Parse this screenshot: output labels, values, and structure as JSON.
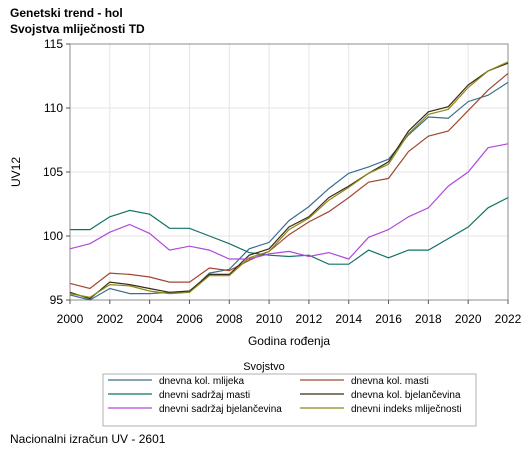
{
  "title": "Genetski trend - hol",
  "subtitle": "Svojstva mliječnosti TD",
  "footnote": "Nacionalni izračun UV - 2601",
  "chart_data": {
    "type": "line",
    "xlabel": "Godina rođenja",
    "ylabel": "UV12",
    "xlim": [
      2000,
      2022
    ],
    "ylim": [
      95,
      115
    ],
    "xticks": [
      2000,
      2002,
      2004,
      2006,
      2008,
      2010,
      2012,
      2014,
      2016,
      2018,
      2020,
      2022
    ],
    "yticks": [
      95,
      100,
      105,
      110,
      115
    ],
    "grid": true,
    "legend_title": "Svojstvo",
    "legend_position": "bottom",
    "x": [
      2000,
      2001,
      2002,
      2003,
      2004,
      2005,
      2006,
      2007,
      2008,
      2009,
      2010,
      2011,
      2012,
      2013,
      2014,
      2015,
      2016,
      2017,
      2018,
      2019,
      2020,
      2021,
      2022
    ],
    "series": [
      {
        "name": "dnevna kol. mlijeka",
        "color": "#3b6e8f",
        "values": [
          95.4,
          95.0,
          95.9,
          95.5,
          95.5,
          95.6,
          95.6,
          97.1,
          97.4,
          99.0,
          99.5,
          101.2,
          102.3,
          103.7,
          104.9,
          105.4,
          106.0,
          107.9,
          109.3,
          109.2,
          110.5,
          111.0,
          112.0
        ]
      },
      {
        "name": "dnevna kol. masti",
        "color": "#a0472f",
        "values": [
          96.3,
          95.9,
          97.1,
          97.0,
          96.8,
          96.4,
          96.4,
          97.5,
          97.3,
          98.1,
          98.8,
          100.1,
          101.1,
          101.9,
          103.0,
          104.2,
          104.5,
          106.6,
          107.8,
          108.2,
          109.8,
          111.4,
          112.7
        ]
      },
      {
        "name": "dnevni sadržaj masti",
        "color": "#127266",
        "values": [
          100.5,
          100.5,
          101.5,
          102.0,
          101.7,
          100.6,
          100.6,
          100.0,
          99.4,
          98.7,
          98.5,
          98.4,
          98.5,
          97.8,
          97.8,
          98.9,
          98.3,
          98.9,
          98.9,
          99.8,
          100.7,
          102.2,
          103.0
        ]
      },
      {
        "name": "dnevna kol. bjelančevina",
        "color": "#3d2a10",
        "values": [
          95.6,
          95.1,
          96.4,
          96.2,
          95.9,
          95.6,
          95.7,
          97.0,
          97.0,
          98.5,
          99.0,
          100.7,
          101.5,
          103.0,
          103.9,
          104.9,
          105.8,
          108.2,
          109.7,
          110.1,
          111.8,
          112.9,
          113.5
        ]
      },
      {
        "name": "dnevni sadržaj bjelančevina",
        "color": "#b04ad8",
        "values": [
          99.0,
          99.4,
          100.3,
          100.9,
          100.2,
          98.9,
          99.2,
          98.9,
          98.2,
          98.2,
          98.6,
          98.8,
          98.4,
          98.7,
          98.2,
          99.9,
          100.5,
          101.5,
          102.2,
          103.9,
          105.0,
          106.9,
          107.2
        ]
      },
      {
        "name": "dnevni indeks mliječnosti",
        "color": "#8a8a18",
        "values": [
          95.5,
          95.2,
          96.2,
          96.1,
          95.7,
          95.5,
          95.6,
          96.9,
          96.9,
          98.3,
          98.8,
          100.5,
          101.4,
          102.8,
          103.8,
          104.9,
          105.6,
          108.0,
          109.5,
          109.9,
          111.6,
          112.9,
          113.6
        ]
      }
    ]
  }
}
